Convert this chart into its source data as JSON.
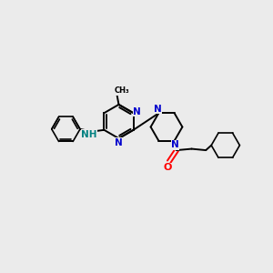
{
  "background_color": "#ebebeb",
  "bond_color": "#000000",
  "nitrogen_color": "#0000cc",
  "oxygen_color": "#ff0000",
  "nh_color": "#008080",
  "figsize": [
    3.0,
    3.0
  ],
  "dpi": 100,
  "xlim": [
    0,
    10
  ],
  "ylim": [
    0,
    10
  ]
}
